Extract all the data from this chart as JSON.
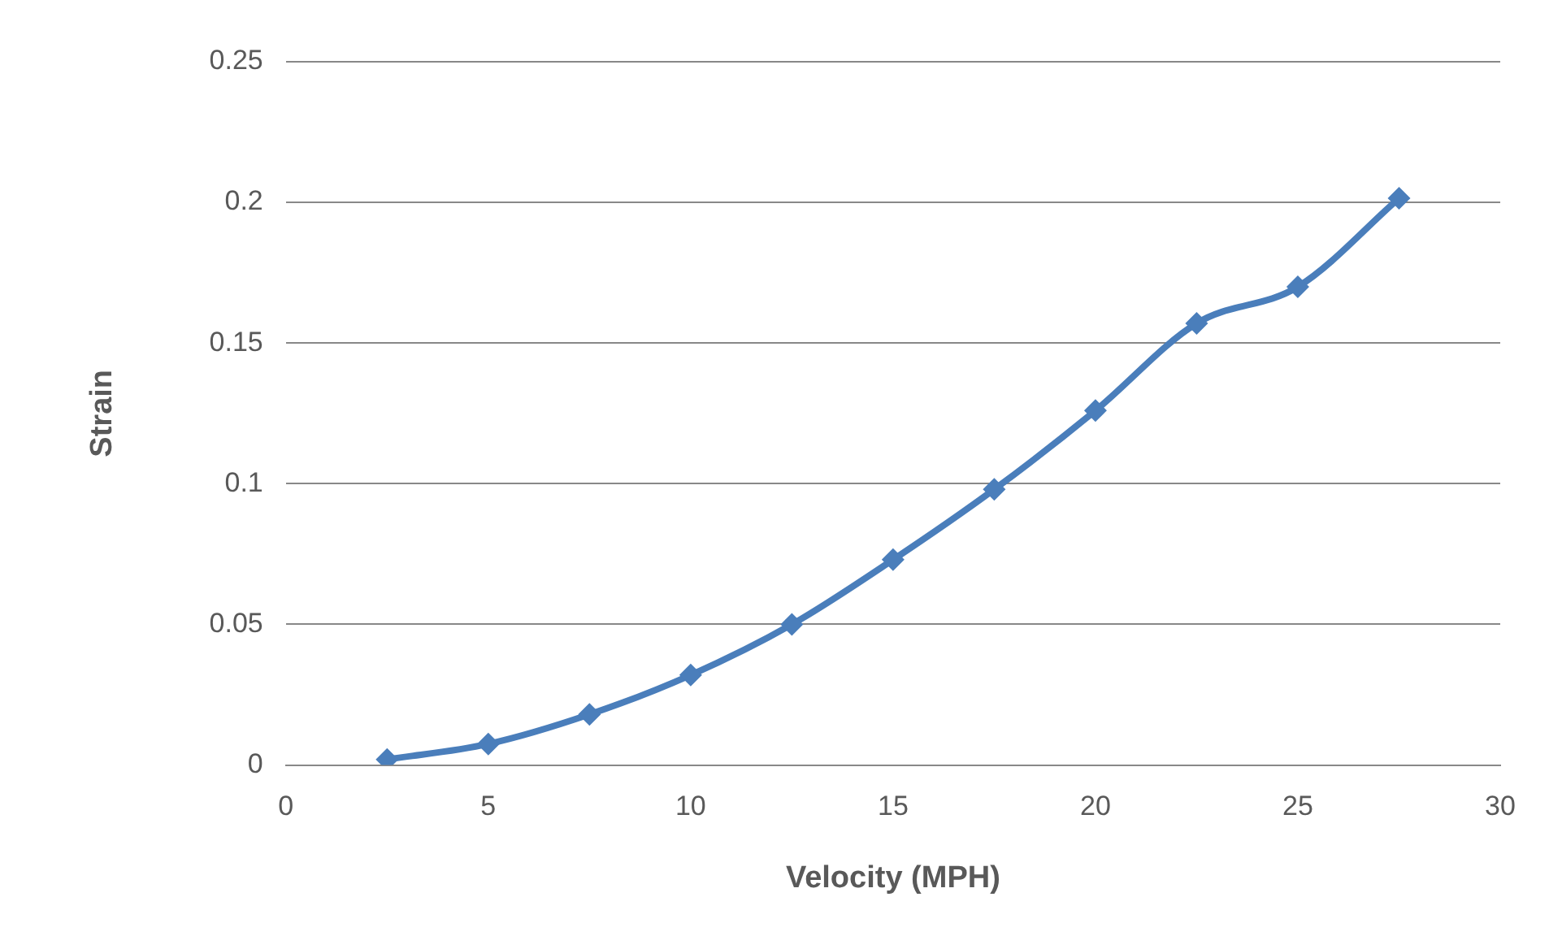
{
  "chart_data": {
    "type": "line",
    "xlabel": "Velocity (MPH)",
    "ylabel": "Strain",
    "x": [
      2.5,
      5,
      7.5,
      10,
      12.5,
      15,
      17.5,
      20,
      22.5,
      25,
      27.5
    ],
    "series": [
      {
        "color": "#4a7ebb",
        "values": [
          0.002,
          0.0075,
          0.018,
          0.032,
          0.05,
          0.073,
          0.098,
          0.126,
          0.157,
          0.17,
          0.2015
        ]
      }
    ],
    "xlim": [
      0,
      30
    ],
    "xticks": [
      0,
      5,
      10,
      15,
      20,
      25,
      30
    ],
    "ylim": [
      0,
      0.25
    ],
    "yticks": [
      0,
      0.05,
      0.1,
      0.15,
      0.2,
      0.25
    ],
    "grid": "y",
    "legend": false,
    "marker": "diamond",
    "line_style": "solid"
  }
}
